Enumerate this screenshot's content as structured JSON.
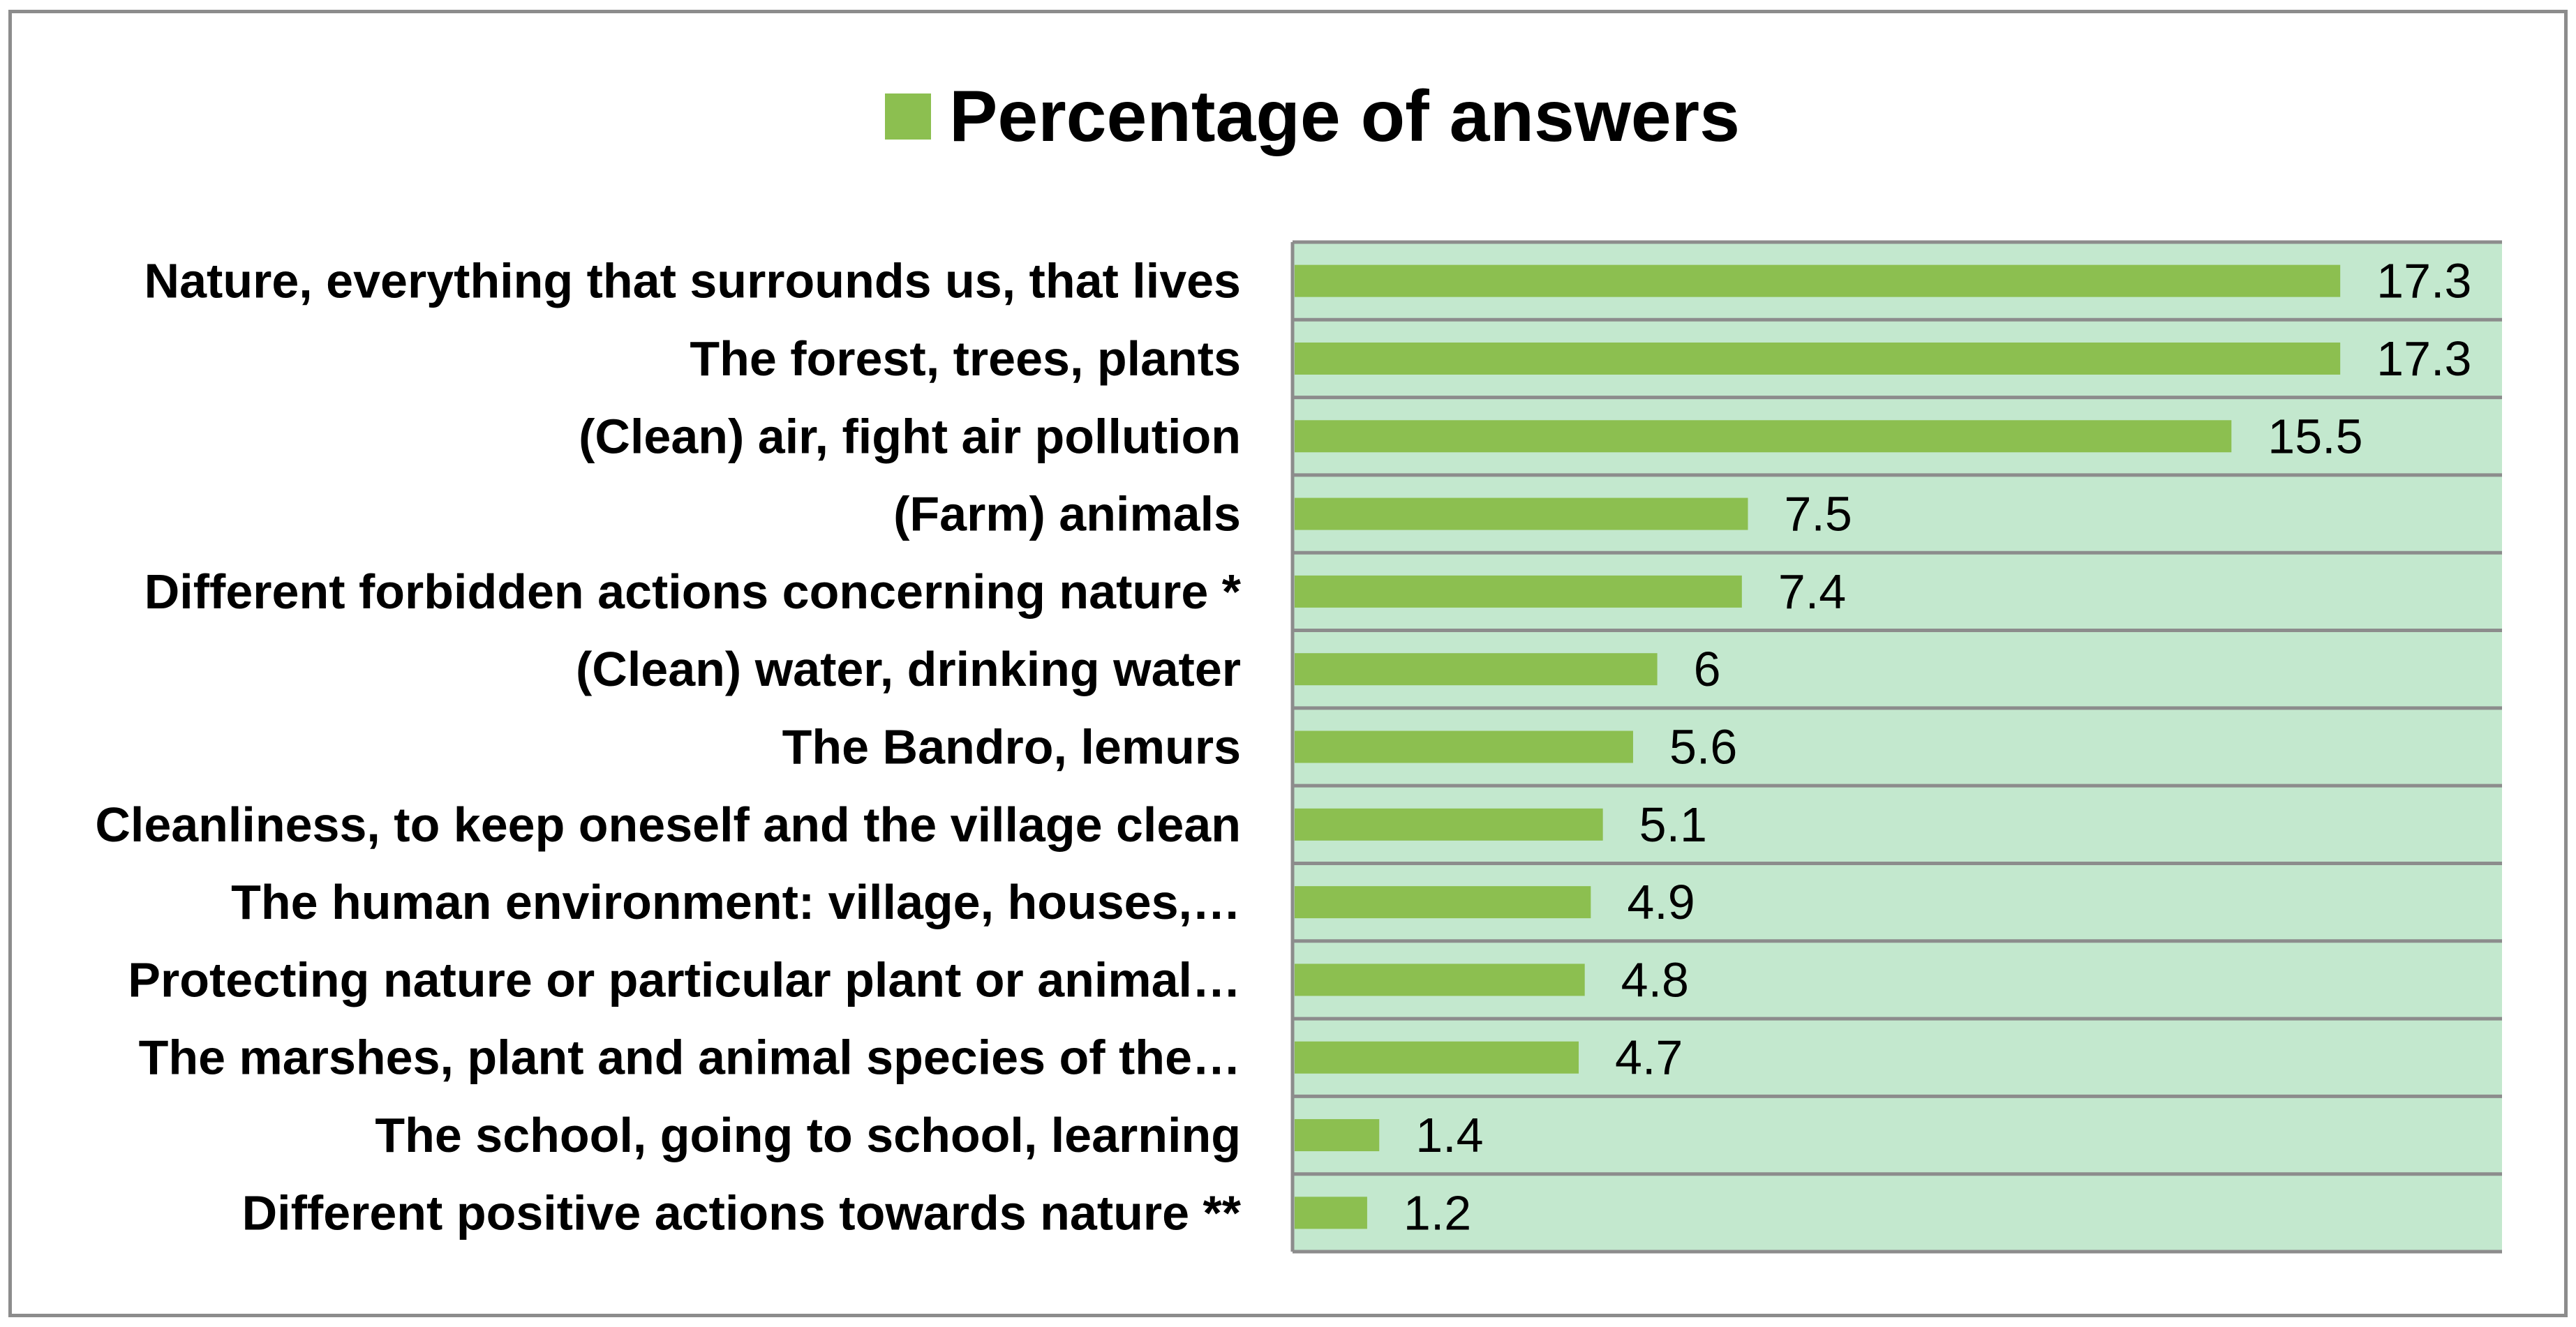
{
  "chart_data": {
    "type": "bar",
    "orientation": "horizontal",
    "categories": [
      "Nature, everything that surrounds us,  that lives",
      "The forest, trees, plants",
      "(Clean) air, fight air pollution",
      "(Farm) animals",
      "Different forbidden actions concerning nature *",
      "(Clean) water, drinking water",
      "The Bandro, lemurs",
      "Cleanliness, to keep oneself and the village clean",
      "The human environment: village, houses,…",
      "Protecting nature or particular plant or animal…",
      "The marshes, plant and animal species of the…",
      "The school, going to school, learning",
      "Different positive actions towards nature **"
    ],
    "series": [
      {
        "name": "Percentage of answers",
        "values": [
          17.3,
          17.3,
          15.5,
          7.5,
          7.4,
          6,
          5.6,
          5.1,
          4.9,
          4.8,
          4.7,
          1.4,
          1.2
        ],
        "value_labels": [
          "17.3",
          "17.3",
          "15.5",
          "7.5",
          "7.4",
          "6",
          "5.6",
          "5.1",
          "4.9",
          "4.8",
          "4.7",
          "1.4",
          "1.2"
        ]
      }
    ],
    "title": "",
    "xlabel": "",
    "ylabel": "",
    "xlim": [
      0,
      20
    ],
    "legend_position": "top-center",
    "colors": {
      "bar": "#8cbf50",
      "plot_background": "#c3e8ce",
      "gridline": "#8c8c8c",
      "axis": "#8c8c8c",
      "frame": "#8c8c8c"
    }
  }
}
